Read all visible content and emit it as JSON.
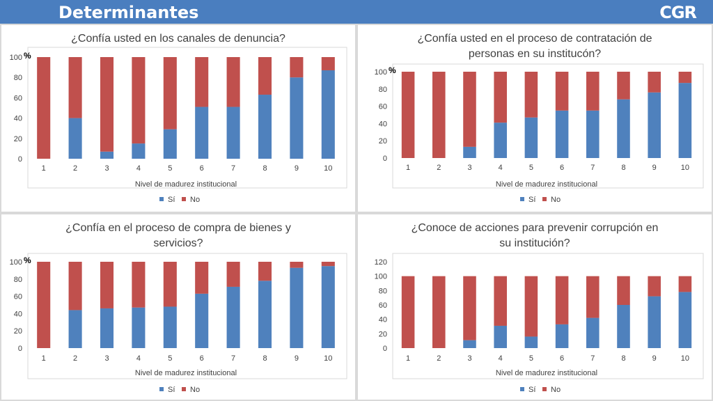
{
  "header": {
    "title": "Determinantes",
    "logo": "CGR"
  },
  "colors": {
    "si": "#4f81bd",
    "no": "#c0504d",
    "header": "#4a7ebf"
  },
  "legend": {
    "si": "Sí",
    "no": "No"
  },
  "chart_data": [
    {
      "type": "bar",
      "title": [
        "¿Confía usted en los canales de denuncia?"
      ],
      "xlabel": "Nivel de madurez institucional",
      "ylabel": "",
      "unit": "%",
      "categories": [
        "1",
        "2",
        "3",
        "4",
        "5",
        "6",
        "7",
        "8",
        "9",
        "10"
      ],
      "yticks": [
        "0",
        "20",
        "40",
        "60",
        "80",
        "100"
      ],
      "ylim": [
        0,
        100
      ],
      "series": [
        {
          "name": "Sí",
          "values": [
            0,
            40,
            7,
            15,
            29,
            51,
            51,
            63,
            80,
            87
          ]
        },
        {
          "name": "No",
          "values": [
            100,
            60,
            93,
            85,
            71,
            49,
            49,
            37,
            20,
            13
          ]
        }
      ]
    },
    {
      "type": "bar",
      "title": [
        "¿Confía usted en el proceso de contratación de",
        "personas en su institucón?"
      ],
      "xlabel": "Nivel de madurez institucional",
      "ylabel": "",
      "unit": "%",
      "categories": [
        "1",
        "2",
        "3",
        "4",
        "5",
        "6",
        "7",
        "8",
        "9",
        "10"
      ],
      "yticks": [
        "0",
        "20",
        "40",
        "60",
        "80",
        "100"
      ],
      "ylim": [
        0,
        100
      ],
      "series": [
        {
          "name": "Sí",
          "values": [
            0,
            0,
            13,
            41,
            47,
            55,
            55,
            68,
            76,
            87
          ]
        },
        {
          "name": "No",
          "values": [
            100,
            100,
            87,
            59,
            53,
            45,
            45,
            32,
            24,
            13
          ]
        }
      ]
    },
    {
      "type": "bar",
      "title": [
        "¿Confía en el proceso de compra de bienes y",
        "servicios?"
      ],
      "xlabel": "Nivel de madurez institucional",
      "ylabel": "",
      "unit": "%",
      "categories": [
        "1",
        "2",
        "3",
        "4",
        "5",
        "6",
        "7",
        "8",
        "9",
        "10"
      ],
      "yticks": [
        "0",
        "20",
        "40",
        "60",
        "80",
        "100"
      ],
      "ylim": [
        0,
        100
      ],
      "series": [
        {
          "name": "Sí",
          "values": [
            0,
            44,
            46,
            47,
            48,
            63,
            71,
            78,
            93,
            95
          ]
        },
        {
          "name": "No",
          "values": [
            100,
            56,
            54,
            53,
            52,
            37,
            29,
            22,
            7,
            5
          ]
        }
      ]
    },
    {
      "type": "bar",
      "title": [
        "¿Conoce de acciones para prevenir corrupción en",
        "su institución?"
      ],
      "xlabel": "Nivel de madurez institucional",
      "ylabel": "",
      "unit": "",
      "categories": [
        "1",
        "2",
        "3",
        "4",
        "5",
        "6",
        "7",
        "8",
        "9",
        "10"
      ],
      "yticks": [
        "0",
        "20",
        "40",
        "60",
        "80",
        "100",
        "120"
      ],
      "ylim": [
        0,
        120
      ],
      "series": [
        {
          "name": "Sí",
          "values": [
            0,
            0,
            11,
            31,
            16,
            33,
            42,
            60,
            72,
            78
          ]
        },
        {
          "name": "No",
          "values": [
            100,
            100,
            89,
            69,
            84,
            67,
            58,
            40,
            28,
            22
          ]
        }
      ]
    }
  ]
}
